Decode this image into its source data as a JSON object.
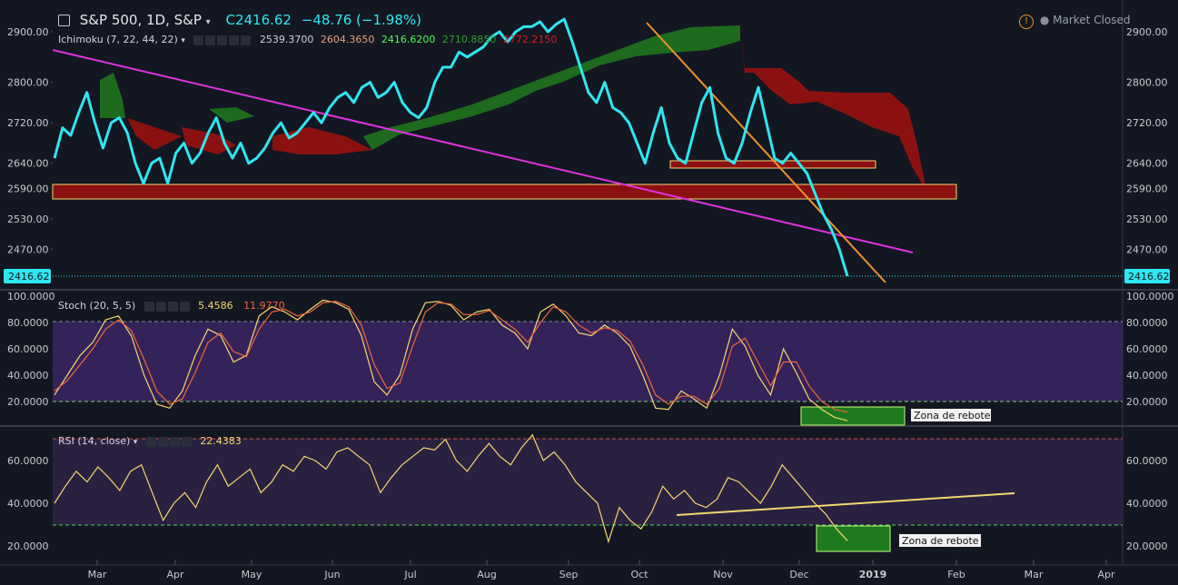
{
  "header": {
    "symbol": "S&P 500, 1D, S&P",
    "last": "C2416.62",
    "change": "−48.76 (−1.98%)",
    "status": "Market Closed",
    "last_price_tag": "2416.62"
  },
  "ichimoku": {
    "label": "Ichimoku (7, 22, 44, 22)",
    "values": [
      "2539.3700",
      "2604.3650",
      "2416.6200",
      "2710.8850",
      "2772.2150"
    ],
    "colors": [
      "#d1d4dc",
      "#e7a37c",
      "#4cff4c",
      "#2e9e2e",
      "#d42020"
    ]
  },
  "stoch": {
    "label": "Stoch (20, 5, 5)",
    "k": "5.4586",
    "d": "11.9770"
  },
  "rsi": {
    "label": "RSI (14, close)",
    "value": "22.4383"
  },
  "annotations": {
    "stoch_zone": "Zona de rebote",
    "rsi_zone": "Zona de rebote"
  },
  "colors": {
    "price": "#2fe6f0",
    "cloud_bull": "#1e6b1e",
    "cloud_bear": "#8b1111",
    "trend_magenta": "#e033e0",
    "trend_orange": "#f0922b",
    "stoch_band": "#3b2664",
    "rsi_band": "#2a2141"
  },
  "chart_data": [
    {
      "type": "line",
      "title": "S&P 500, 1D, S&P",
      "x_ticks": [
        "Mar",
        "Apr",
        "May",
        "Jun",
        "Jul",
        "Aug",
        "Sep",
        "Oct",
        "Nov",
        "Dec",
        "2019",
        "Feb",
        "Mar",
        "Apr"
      ],
      "y_ticks": [
        2900,
        2800,
        2720,
        2640,
        2590,
        2530,
        2470
      ],
      "ylim": [
        2400,
        2930
      ],
      "series": [
        {
          "values": [
            2650,
            2710,
            2695,
            2740,
            2780,
            2720,
            2670,
            2720,
            2730,
            2700,
            2640,
            2600,
            2640,
            2650,
            2600,
            2660,
            2680,
            2640,
            2660,
            2700,
            2730,
            2680,
            2650,
            2680,
            2640,
            2650,
            2670,
            2700,
            2720,
            2690,
            2700,
            2720,
            2740,
            2720,
            2750,
            2770,
            2780,
            2760,
            2790,
            2800,
            2770,
            2780,
            2800,
            2760,
            2740,
            2730,
            2750,
            2800,
            2830,
            2830,
            2860,
            2850,
            2860,
            2870,
            2890,
            2900,
            2880,
            2900,
            2910,
            2910,
            2920,
            2900,
            2915,
            2925,
            2880,
            2830,
            2780,
            2760,
            2800,
            2750,
            2740,
            2720,
            2680,
            2640,
            2700,
            2750,
            2680,
            2650,
            2640,
            2700,
            2760,
            2790,
            2700,
            2650,
            2640,
            2680,
            2740,
            2790,
            2720,
            2650,
            2640,
            2660,
            2640,
            2620,
            2580,
            2540,
            2510,
            2470,
            2416.62
          ]
        }
      ]
    },
    {
      "type": "line",
      "title": "Stoch (20, 5, 5)",
      "y_ticks": [
        100,
        80,
        60,
        40,
        20
      ],
      "ylim": [
        0,
        100
      ],
      "series": [
        {
          "name": "5.4586",
          "values": [
            25,
            40,
            55,
            65,
            82,
            85,
            70,
            40,
            18,
            15,
            28,
            55,
            75,
            70,
            50,
            55,
            85,
            92,
            88,
            82,
            90,
            97,
            95,
            90,
            70,
            35,
            25,
            40,
            75,
            95,
            96,
            93,
            82,
            88,
            90,
            78,
            72,
            60,
            88,
            94,
            85,
            72,
            70,
            78,
            72,
            62,
            40,
            15,
            14,
            28,
            22,
            15,
            40,
            75,
            62,
            40,
            25,
            60,
            42,
            22,
            14,
            8,
            5.46
          ]
        },
        {
          "name": "11.9770",
          "values": [
            28,
            36,
            48,
            60,
            75,
            82,
            74,
            52,
            28,
            18,
            22,
            42,
            65,
            72,
            58,
            54,
            75,
            88,
            90,
            85,
            88,
            95,
            96,
            92,
            78,
            48,
            30,
            34,
            62,
            88,
            95,
            94,
            86,
            86,
            89,
            82,
            75,
            65,
            80,
            92,
            88,
            78,
            72,
            76,
            74,
            66,
            48,
            25,
            18,
            24,
            24,
            18,
            30,
            62,
            68,
            50,
            32,
            50,
            50,
            32,
            20,
            14,
            11.98
          ]
        }
      ]
    },
    {
      "type": "line",
      "title": "RSI (14, close)",
      "y_ticks": [
        60,
        40,
        20
      ],
      "ylim": [
        15,
        75
      ],
      "series": [
        {
          "name": "22.4383",
          "values": [
            40,
            48,
            55,
            50,
            57,
            52,
            46,
            55,
            58,
            45,
            32,
            40,
            45,
            38,
            50,
            58,
            48,
            52,
            56,
            45,
            50,
            58,
            55,
            62,
            60,
            56,
            64,
            66,
            62,
            58,
            45,
            52,
            58,
            62,
            66,
            65,
            70,
            60,
            55,
            62,
            68,
            62,
            58,
            66,
            72,
            60,
            64,
            58,
            50,
            45,
            40,
            22,
            38,
            32,
            28,
            36,
            48,
            42,
            46,
            40,
            38,
            42,
            52,
            50,
            45,
            40,
            48,
            58,
            52,
            46,
            40,
            35,
            28,
            22.44
          ]
        }
      ]
    }
  ]
}
